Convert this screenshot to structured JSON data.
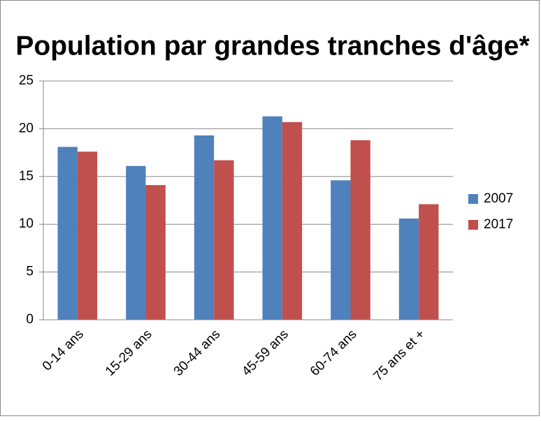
{
  "chart_data": {
    "type": "bar",
    "title": "Population par grandes tranches d'âge*",
    "categories": [
      "0-14 ans",
      "15-29 ans",
      "30-44 ans",
      "45-59 ans",
      "60-74 ans",
      "75 ans et +"
    ],
    "series": [
      {
        "name": "2007",
        "color": "#4f81bd",
        "values": [
          18.1,
          16.1,
          19.3,
          21.3,
          14.6,
          10.6
        ]
      },
      {
        "name": "2017",
        "color": "#c0504d",
        "values": [
          17.6,
          14.1,
          16.7,
          20.7,
          18.8,
          12.1
        ]
      }
    ],
    "ylim": [
      0,
      25
    ],
    "yticks": [
      0,
      5,
      10,
      15,
      20,
      25
    ],
    "grid": true,
    "legend": "right"
  }
}
